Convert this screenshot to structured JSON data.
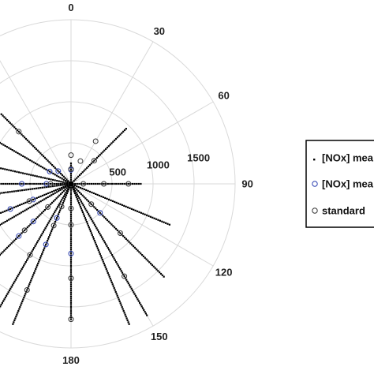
{
  "chart_data": {
    "type": "scatter",
    "coordinate_system": "polar",
    "angular_axis": {
      "zero_direction": "top",
      "direction": "clockwise",
      "range": [
        0,
        360
      ],
      "tick_step": 30,
      "visible_tick_labels": [
        "0",
        "30",
        "60",
        "90",
        "120",
        "150",
        "180"
      ]
    },
    "radial_axis": {
      "range": [
        0,
        2000
      ],
      "grid_step": 500,
      "visible_tick_labels": [
        "500",
        "1000",
        "1500"
      ],
      "label_angle": 80
    },
    "grid": true,
    "legend": {
      "placement": "right",
      "entries": [
        {
          "marker": "dot",
          "label": "[NOx] mea"
        },
        {
          "marker": "blue-circle",
          "label": "[NOx] mea"
        },
        {
          "marker": "black-circle",
          "label": "standard"
        }
      ]
    },
    "series": [
      {
        "marker": "dot",
        "angles": [
          0,
          45,
          90,
          112.5,
          135,
          150,
          157.5,
          180,
          202.5,
          210,
          225,
          240,
          247.5,
          262.5,
          270,
          282.5,
          300,
          315
        ],
        "radius_min": [
          0,
          0,
          0,
          0,
          0,
          0,
          0,
          0,
          0,
          0,
          0,
          0,
          0,
          0,
          0,
          0,
          0,
          0
        ],
        "radius_max": [
          250,
          950,
          870,
          1320,
          1600,
          1850,
          1850,
          1650,
          1850,
          1950,
          2000,
          2000,
          2000,
          2000,
          2000,
          1800,
          1500,
          1200
        ]
      },
      {
        "marker": "blue-circle",
        "angles": [
          0,
          315,
          300,
          270,
          270,
          247.5,
          247.5,
          225,
          225,
          202.5,
          202.5,
          180,
          135
        ],
        "radii": [
          170,
          220,
          300,
          600,
          300,
          800,
          500,
          900,
          650,
          800,
          450,
          850,
          500
        ]
      },
      {
        "marker": "black-circle",
        "angles": [
          0,
          0,
          22.5,
          30,
          45,
          90,
          90,
          90,
          135,
          135,
          150,
          180,
          180,
          180,
          180,
          202.5,
          202.5,
          202.5,
          210,
          210,
          225,
          225,
          225,
          247.5,
          247.5,
          247.5,
          262.5,
          262.5,
          270,
          270,
          270,
          282.5,
          300,
          315
        ],
        "radii": [
          180,
          350,
          300,
          600,
          400,
          150,
          400,
          700,
          350,
          850,
          1300,
          300,
          500,
          1150,
          1650,
          300,
          550,
          1400,
          1000,
          1850,
          400,
          800,
          1500,
          550,
          1050,
          1500,
          900,
          1850,
          250,
          900,
          1500,
          1800,
          1200,
          900
        ]
      }
    ]
  }
}
